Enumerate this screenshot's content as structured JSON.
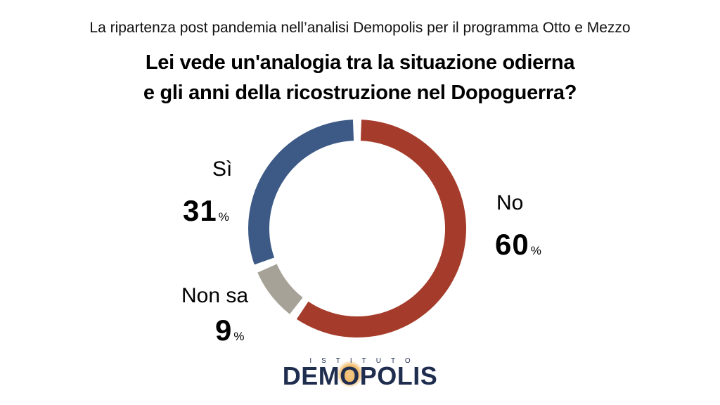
{
  "header": {
    "subtitle": "La ripartenza post pandemia nell’analisi Demopolis per il programma Otto e Mezzo",
    "question_line1": "Lei vede un'analogia tra la situazione odierna",
    "question_line2": "e gli anni della ricostruzione nel Dopoguerra?"
  },
  "chart_data": {
    "type": "pie",
    "categories": [
      "No",
      "Non sa",
      "Sì"
    ],
    "values": [
      60,
      9,
      31
    ],
    "value_labels": [
      "60",
      "9",
      "31"
    ],
    "unit": "%",
    "colors": [
      "#a53c2b",
      "#a6a298",
      "#3c5a85"
    ],
    "title": "Lei vede un'analogia tra la situazione odierna e gli anni della ricostruzione nel Dopoguerra?"
  },
  "logo": {
    "top_text": "ISTITUTO",
    "main_before": "DEM",
    "main_o": "O",
    "main_after": "POLIS"
  }
}
